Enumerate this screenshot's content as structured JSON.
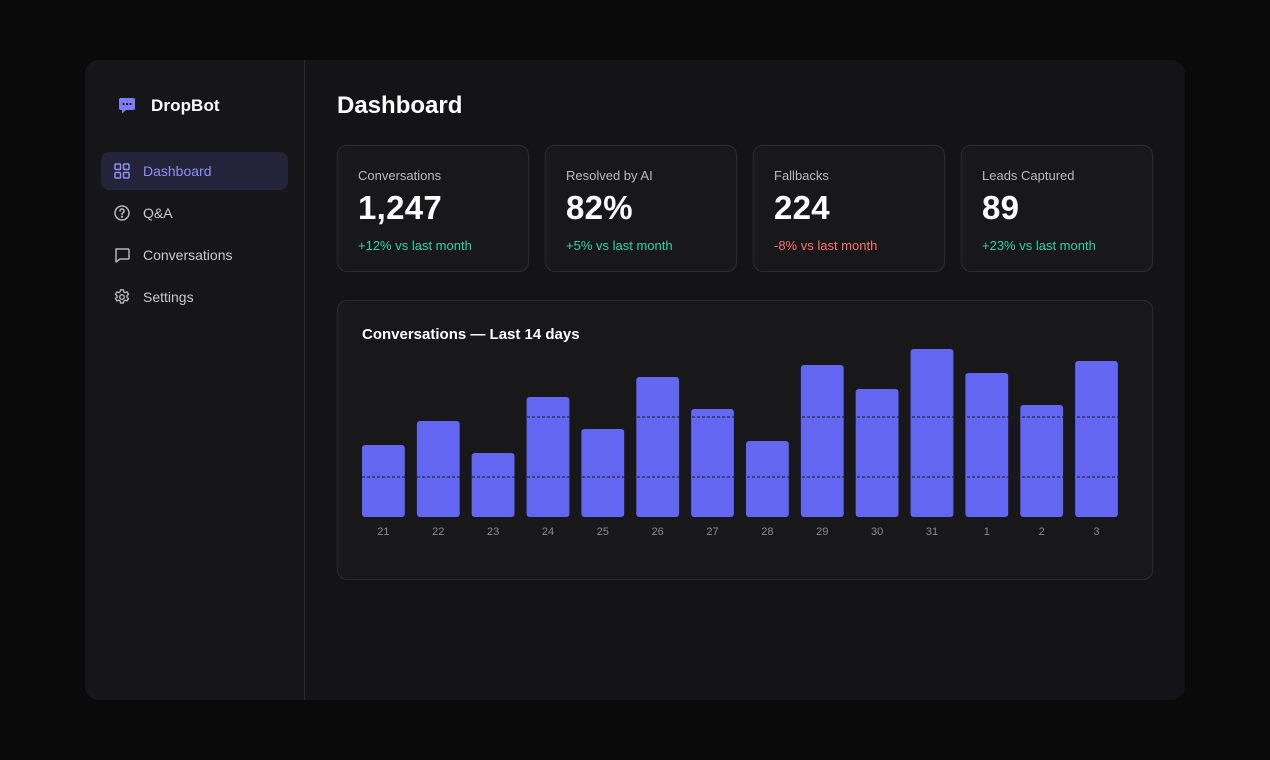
{
  "app": {
    "name": "DropBot",
    "icon": "chat-bubble-icon",
    "accent": "#6366f1"
  },
  "sidebar": {
    "items": [
      {
        "label": "Dashboard",
        "icon": "grid-icon",
        "active": true
      },
      {
        "label": "Q&A",
        "icon": "question-circle-icon",
        "active": false
      },
      {
        "label": "Conversations",
        "icon": "message-square-icon",
        "active": false
      },
      {
        "label": "Settings",
        "icon": "gear-icon",
        "active": false
      }
    ]
  },
  "main": {
    "title": "Dashboard",
    "stats": [
      {
        "label": "Conversations",
        "value": "1,247",
        "delta": "+12% vs last month",
        "trend": "up"
      },
      {
        "label": "Resolved by AI",
        "value": "82%",
        "delta": "+5% vs last month",
        "trend": "up"
      },
      {
        "label": "Fallbacks",
        "value": "224",
        "delta": "-8% vs last month",
        "trend": "down"
      },
      {
        "label": "Leads Captured",
        "value": "89",
        "delta": "+23% vs last month",
        "trend": "up"
      }
    ],
    "colors": {
      "positive": "#34d399",
      "negative": "#f87171"
    }
  },
  "chart_data": {
    "type": "bar",
    "title": "Conversations — Last 14 days",
    "categories": [
      "21",
      "22",
      "23",
      "24",
      "25",
      "26",
      "27",
      "28",
      "29",
      "30",
      "31",
      "1",
      "2",
      "3"
    ],
    "values": [
      36,
      48,
      32,
      60,
      44,
      70,
      54,
      38,
      76,
      64,
      84,
      72,
      56,
      78
    ],
    "ylim": [
      0,
      84
    ],
    "gridlines": [
      20,
      50
    ],
    "xlabel": "",
    "ylabel": "",
    "bar_color": "#6366f1",
    "legend": "none"
  }
}
